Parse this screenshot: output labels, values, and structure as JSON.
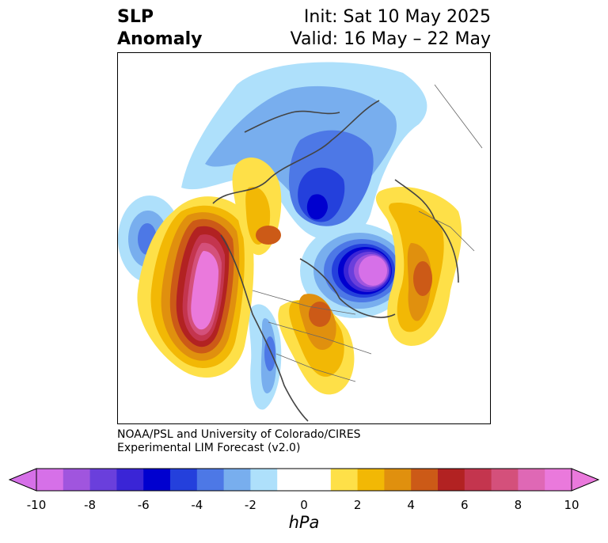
{
  "header": {
    "title_line1": "SLP",
    "title_line2": "Anomaly",
    "init_text": "Init: Sat 10 May 2025",
    "valid_text": "Valid: 16 May – 22 May"
  },
  "credits": {
    "line1": "NOAA/PSL and University of Colorado/CIRES",
    "line2": "Experimental LIM Forecast (v2.0)"
  },
  "colorbar": {
    "unit": "hPa",
    "ticks": [
      "-10",
      "-8",
      "-6",
      "-4",
      "-2",
      "0",
      "2",
      "4",
      "6",
      "8",
      "10"
    ],
    "colors": [
      "#d670e8",
      "#a055de",
      "#6a3fdc",
      "#3a25d6",
      "#0000cf",
      "#2440dc",
      "#4d78e6",
      "#78aeee",
      "#aee0fb",
      "#ffffff",
      "#ffffff",
      "#fee048",
      "#f2b805",
      "#e0900e",
      "#cc5a17",
      "#b22222",
      "#c4354e",
      "#d4507b",
      "#df68b5",
      "#ea79dc"
    ],
    "over_color": "#ea79dc",
    "under_color": "#d670e8"
  }
}
